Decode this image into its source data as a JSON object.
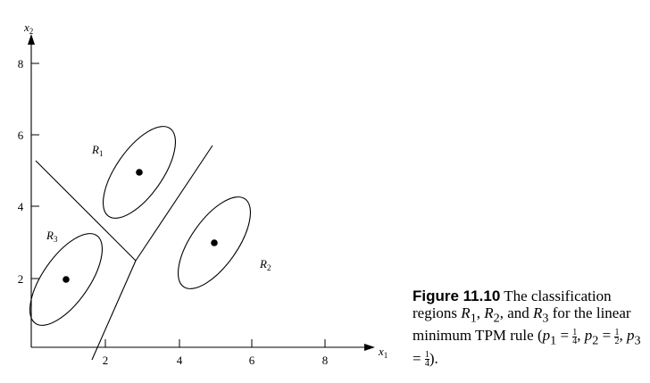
{
  "figure": {
    "x_axis_label": "x",
    "x_axis_sub": "1",
    "y_axis_label": "x",
    "y_axis_sub": "2",
    "x_ticks": [
      "2",
      "4",
      "6",
      "8"
    ],
    "y_ticks": [
      "2",
      "4",
      "6",
      "8"
    ],
    "regions": [
      {
        "name": "R",
        "sub": "1"
      },
      {
        "name": "R",
        "sub": "2"
      },
      {
        "name": "R",
        "sub": "3"
      }
    ]
  },
  "caption": {
    "fig_label": "Figure 11.10",
    "text_1": "The classification regions",
    "r1": "R",
    "r1_sub": "1",
    "r2": "R",
    "r2_sub": "2",
    "and": "and",
    "r3": "R",
    "r3_sub": "3",
    "text_2": "for the linear minimum TPM rule",
    "p1": "p",
    "p1_sub": "1",
    "p2": "p",
    "p2_sub": "2",
    "p3": "p",
    "p3_sub": "3",
    "frac1_num": "1",
    "frac1_den": "4",
    "frac2_num": "1",
    "frac2_den": "2",
    "frac3_num": "1",
    "frac3_den": "4"
  }
}
